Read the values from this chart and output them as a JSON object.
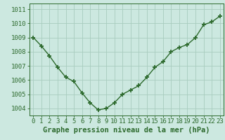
{
  "x": [
    0,
    1,
    2,
    3,
    4,
    5,
    6,
    7,
    8,
    9,
    10,
    11,
    12,
    13,
    14,
    15,
    16,
    17,
    18,
    19,
    20,
    21,
    22,
    23
  ],
  "y": [
    1009.0,
    1008.4,
    1007.7,
    1006.9,
    1006.2,
    1005.9,
    1005.1,
    1004.4,
    1003.9,
    1004.0,
    1004.4,
    1005.0,
    1005.3,
    1005.6,
    1006.2,
    1006.9,
    1007.3,
    1008.0,
    1008.3,
    1008.5,
    1009.0,
    1009.9,
    1010.1,
    1010.5
  ],
  "line_color": "#2d6a2d",
  "marker": "+",
  "bg_color": "#cce8e0",
  "grid_color": "#a8ccbe",
  "xlabel": "Graphe pression niveau de la mer (hPa)",
  "xlabel_color": "#2d6a2d",
  "ylabel_ticks": [
    1004,
    1005,
    1006,
    1007,
    1008,
    1009,
    1010,
    1011
  ],
  "ylim": [
    1003.5,
    1011.4
  ],
  "xlim": [
    -0.5,
    23.5
  ],
  "tick_color": "#2d6a2d",
  "spine_color": "#2d6a2d",
  "tick_fontsize": 6.5,
  "marker_size": 4,
  "marker_edge_width": 1.3,
  "line_width": 1.0,
  "xlabel_fontsize": 7.5,
  "xlabel_fontweight": "bold"
}
